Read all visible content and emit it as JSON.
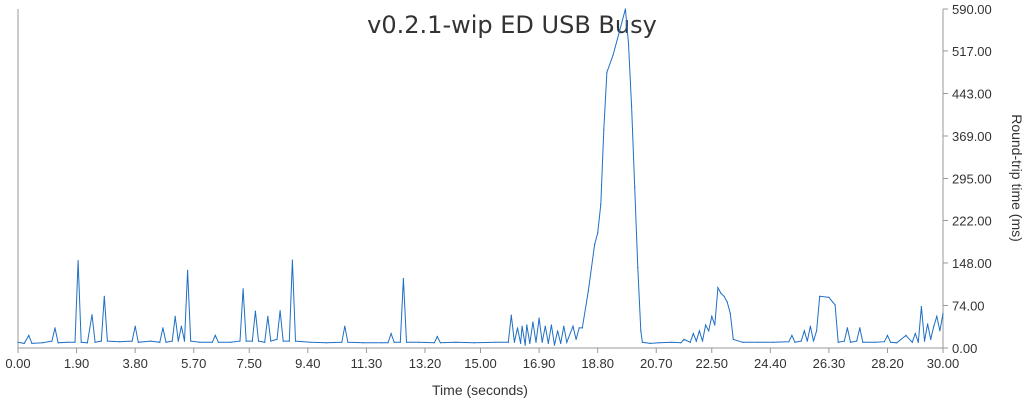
{
  "chart_data": {
    "type": "line",
    "title": "v0.2.1-wip ED USB Busy",
    "xlabel": "Time (seconds)",
    "ylabel": "Round-trip time (ms)",
    "xlim": [
      0,
      30
    ],
    "ylim": [
      0,
      590
    ],
    "x_ticks": [
      "0.00",
      "1.90",
      "3.80",
      "5.70",
      "7.50",
      "9.40",
      "11.30",
      "13.20",
      "15.00",
      "16.90",
      "18.80",
      "20.70",
      "22.50",
      "24.40",
      "26.30",
      "28.20",
      "30.00"
    ],
    "y_ticks": [
      "0.00",
      "74.00",
      "148.00",
      "222.00",
      "295.00",
      "369.00",
      "443.00",
      "517.00",
      "590.00"
    ],
    "y_axis_side": "right",
    "grid": false,
    "series": [
      {
        "color": "#1f6fc5",
        "points": [
          [
            0.0,
            10
          ],
          [
            0.2,
            8
          ],
          [
            0.35,
            22
          ],
          [
            0.45,
            8
          ],
          [
            0.8,
            9
          ],
          [
            1.1,
            12
          ],
          [
            1.2,
            35
          ],
          [
            1.3,
            9
          ],
          [
            1.6,
            10
          ],
          [
            1.85,
            10
          ],
          [
            1.95,
            152
          ],
          [
            2.05,
            10
          ],
          [
            2.25,
            9
          ],
          [
            2.4,
            58
          ],
          [
            2.5,
            10
          ],
          [
            2.7,
            12
          ],
          [
            2.8,
            90
          ],
          [
            2.9,
            12
          ],
          [
            3.3,
            11
          ],
          [
            3.7,
            12
          ],
          [
            3.8,
            38
          ],
          [
            3.9,
            10
          ],
          [
            4.3,
            12
          ],
          [
            4.6,
            10
          ],
          [
            4.7,
            35
          ],
          [
            4.8,
            10
          ],
          [
            5.0,
            12
          ],
          [
            5.1,
            55
          ],
          [
            5.2,
            12
          ],
          [
            5.3,
            38
          ],
          [
            5.4,
            12
          ],
          [
            5.5,
            135
          ],
          [
            5.6,
            12
          ],
          [
            5.9,
            10
          ],
          [
            6.3,
            10
          ],
          [
            6.4,
            22
          ],
          [
            6.5,
            10
          ],
          [
            6.9,
            10
          ],
          [
            7.2,
            12
          ],
          [
            7.3,
            103
          ],
          [
            7.4,
            12
          ],
          [
            7.6,
            12
          ],
          [
            7.7,
            64
          ],
          [
            7.8,
            12
          ],
          [
            8.0,
            10
          ],
          [
            8.1,
            55
          ],
          [
            8.2,
            12
          ],
          [
            8.4,
            15
          ],
          [
            8.5,
            65
          ],
          [
            8.6,
            12
          ],
          [
            8.8,
            12
          ],
          [
            8.9,
            153
          ],
          [
            9.0,
            12
          ],
          [
            9.5,
            10
          ],
          [
            10.0,
            9
          ],
          [
            10.5,
            10
          ],
          [
            10.6,
            38
          ],
          [
            10.7,
            10
          ],
          [
            11.2,
            9
          ],
          [
            11.8,
            9
          ],
          [
            12.0,
            9
          ],
          [
            12.1,
            25
          ],
          [
            12.2,
            10
          ],
          [
            12.4,
            10
          ],
          [
            12.5,
            121
          ],
          [
            12.6,
            10
          ],
          [
            13.0,
            10
          ],
          [
            13.5,
            9
          ],
          [
            13.6,
            20
          ],
          [
            13.7,
            9
          ],
          [
            14.2,
            10
          ],
          [
            14.8,
            9
          ],
          [
            15.5,
            10
          ],
          [
            15.9,
            10
          ],
          [
            16.0,
            57
          ],
          [
            16.1,
            10
          ],
          [
            16.2,
            35
          ],
          [
            16.3,
            8
          ],
          [
            16.35,
            38
          ],
          [
            16.45,
            5
          ],
          [
            16.5,
            40
          ],
          [
            16.6,
            8
          ],
          [
            16.7,
            45
          ],
          [
            16.8,
            10
          ],
          [
            16.9,
            52
          ],
          [
            17.0,
            10
          ],
          [
            17.1,
            38
          ],
          [
            17.2,
            8
          ],
          [
            17.3,
            40
          ],
          [
            17.4,
            5
          ],
          [
            17.5,
            30
          ],
          [
            17.6,
            8
          ],
          [
            17.7,
            38
          ],
          [
            17.8,
            10
          ],
          [
            18.0,
            38
          ],
          [
            18.1,
            15
          ],
          [
            18.2,
            35
          ],
          [
            18.3,
            35
          ],
          [
            18.5,
            100
          ],
          [
            18.7,
            180
          ],
          [
            18.8,
            200
          ],
          [
            18.9,
            250
          ],
          [
            19.0,
            380
          ],
          [
            19.1,
            480
          ],
          [
            19.3,
            510
          ],
          [
            19.5,
            550
          ],
          [
            19.7,
            590
          ],
          [
            19.8,
            530
          ],
          [
            19.9,
            420
          ],
          [
            20.0,
            280
          ],
          [
            20.1,
            140
          ],
          [
            20.2,
            30
          ],
          [
            20.25,
            10
          ],
          [
            20.5,
            8
          ],
          [
            20.8,
            9
          ],
          [
            21.2,
            10
          ],
          [
            21.5,
            9
          ],
          [
            21.6,
            15
          ],
          [
            21.8,
            10
          ],
          [
            21.9,
            25
          ],
          [
            22.0,
            12
          ],
          [
            22.1,
            30
          ],
          [
            22.2,
            12
          ],
          [
            22.3,
            40
          ],
          [
            22.4,
            30
          ],
          [
            22.5,
            55
          ],
          [
            22.6,
            40
          ],
          [
            22.7,
            105
          ],
          [
            22.8,
            95
          ],
          [
            22.9,
            90
          ],
          [
            23.0,
            80
          ],
          [
            23.1,
            60
          ],
          [
            23.2,
            15
          ],
          [
            23.5,
            10
          ],
          [
            24.0,
            10
          ],
          [
            24.5,
            10
          ],
          [
            25.0,
            11
          ],
          [
            25.1,
            22
          ],
          [
            25.2,
            10
          ],
          [
            25.4,
            12
          ],
          [
            25.5,
            30
          ],
          [
            25.6,
            12
          ],
          [
            25.7,
            38
          ],
          [
            25.8,
            12
          ],
          [
            25.9,
            30
          ],
          [
            26.0,
            90
          ],
          [
            26.3,
            88
          ],
          [
            26.5,
            75
          ],
          [
            26.6,
            10
          ],
          [
            26.8,
            12
          ],
          [
            26.9,
            35
          ],
          [
            27.0,
            10
          ],
          [
            27.2,
            12
          ],
          [
            27.3,
            35
          ],
          [
            27.4,
            10
          ],
          [
            27.8,
            10
          ],
          [
            28.1,
            11
          ],
          [
            28.2,
            22
          ],
          [
            28.3,
            10
          ],
          [
            28.5,
            9
          ],
          [
            28.8,
            22
          ],
          [
            29.0,
            10
          ],
          [
            29.1,
            25
          ],
          [
            29.2,
            10
          ],
          [
            29.3,
            72
          ],
          [
            29.4,
            12
          ],
          [
            29.5,
            42
          ],
          [
            29.6,
            15
          ],
          [
            29.7,
            38
          ],
          [
            29.8,
            55
          ],
          [
            29.9,
            30
          ],
          [
            30.0,
            60
          ]
        ]
      }
    ]
  }
}
